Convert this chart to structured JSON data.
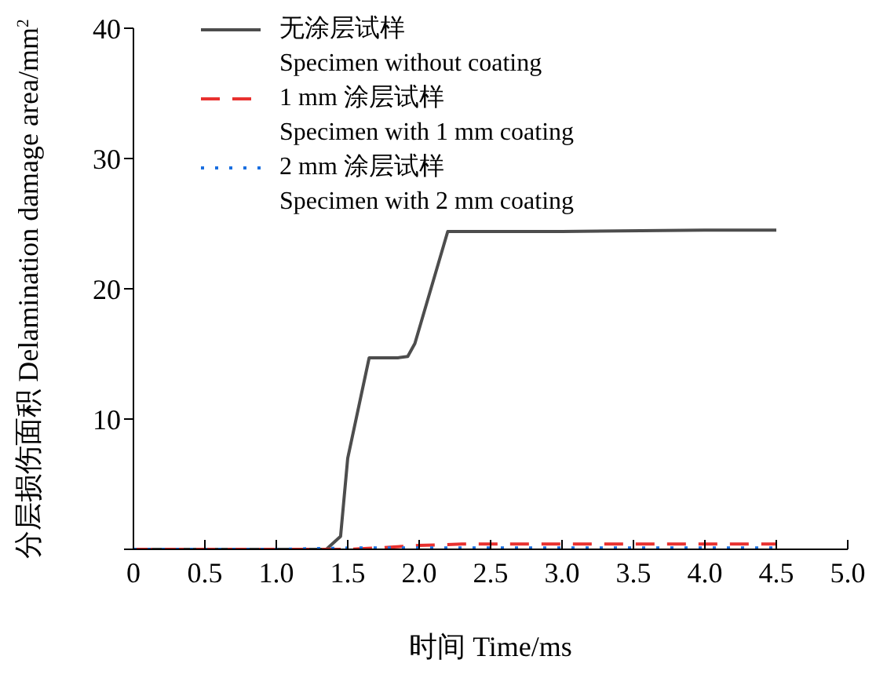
{
  "chart_data": {
    "type": "line",
    "xlabel": "时间 Time/ms",
    "ylabel": "分层损伤面积 Delamination damage area/mm$^{2}$",
    "series": [
      {
        "name": "无涂层试样\nSpecimen without coating",
        "color": "#4d4d4d",
        "line_style": "solid",
        "x": [
          0,
          0.5,
          1.0,
          1.35,
          1.45,
          1.5,
          1.65,
          1.85,
          1.92,
          1.97,
          2.2,
          3.0,
          4.0,
          4.5
        ],
        "values": [
          0,
          0,
          0,
          0,
          1,
          7,
          14.7,
          14.7,
          14.8,
          15.8,
          24.4,
          24.4,
          24.5,
          24.5
        ]
      },
      {
        "name": "1 mm 涂层试样\nSpecimen with 1 mm coating",
        "color": "#e8312f",
        "line_style": "dashed",
        "x": [
          0,
          0.5,
          1.0,
          1.5,
          1.7,
          2.0,
          2.3,
          2.5,
          3.0,
          3.5,
          4.0,
          4.5
        ],
        "values": [
          0,
          0,
          0,
          0,
          0.1,
          0.3,
          0.4,
          0.4,
          0.4,
          0.4,
          0.4,
          0.4
        ]
      },
      {
        "name": "2 mm 涂层试样\nSpecimen with 2 mm coating",
        "color": "#1a6fe0",
        "line_style": "dotted",
        "x": [
          0,
          0.5,
          1.0,
          1.5,
          2.0,
          2.5,
          3.0,
          3.5,
          4.0,
          4.5
        ],
        "values": [
          0,
          0,
          0,
          0.1,
          0.1,
          0.1,
          0.1,
          0.1,
          0.1,
          0.1
        ]
      }
    ],
    "xlim": [
      0,
      5
    ],
    "xticks": [
      0,
      0.5,
      {
        "value": 1,
        "label": "1.0"
      },
      1.5,
      {
        "value": 2,
        "label": "2.0"
      },
      2.5,
      {
        "value": 3,
        "label": "3.0"
      },
      3.5,
      {
        "value": 4,
        "label": "4.0"
      },
      4.5,
      {
        "value": 5,
        "label": "5.0"
      }
    ],
    "ylim": [
      0,
      40
    ],
    "yticks": [
      {
        "value": 0,
        "label": null
      },
      10,
      20,
      30,
      40
    ],
    "grid": false,
    "legend": "top left",
    "marker": "none"
  }
}
